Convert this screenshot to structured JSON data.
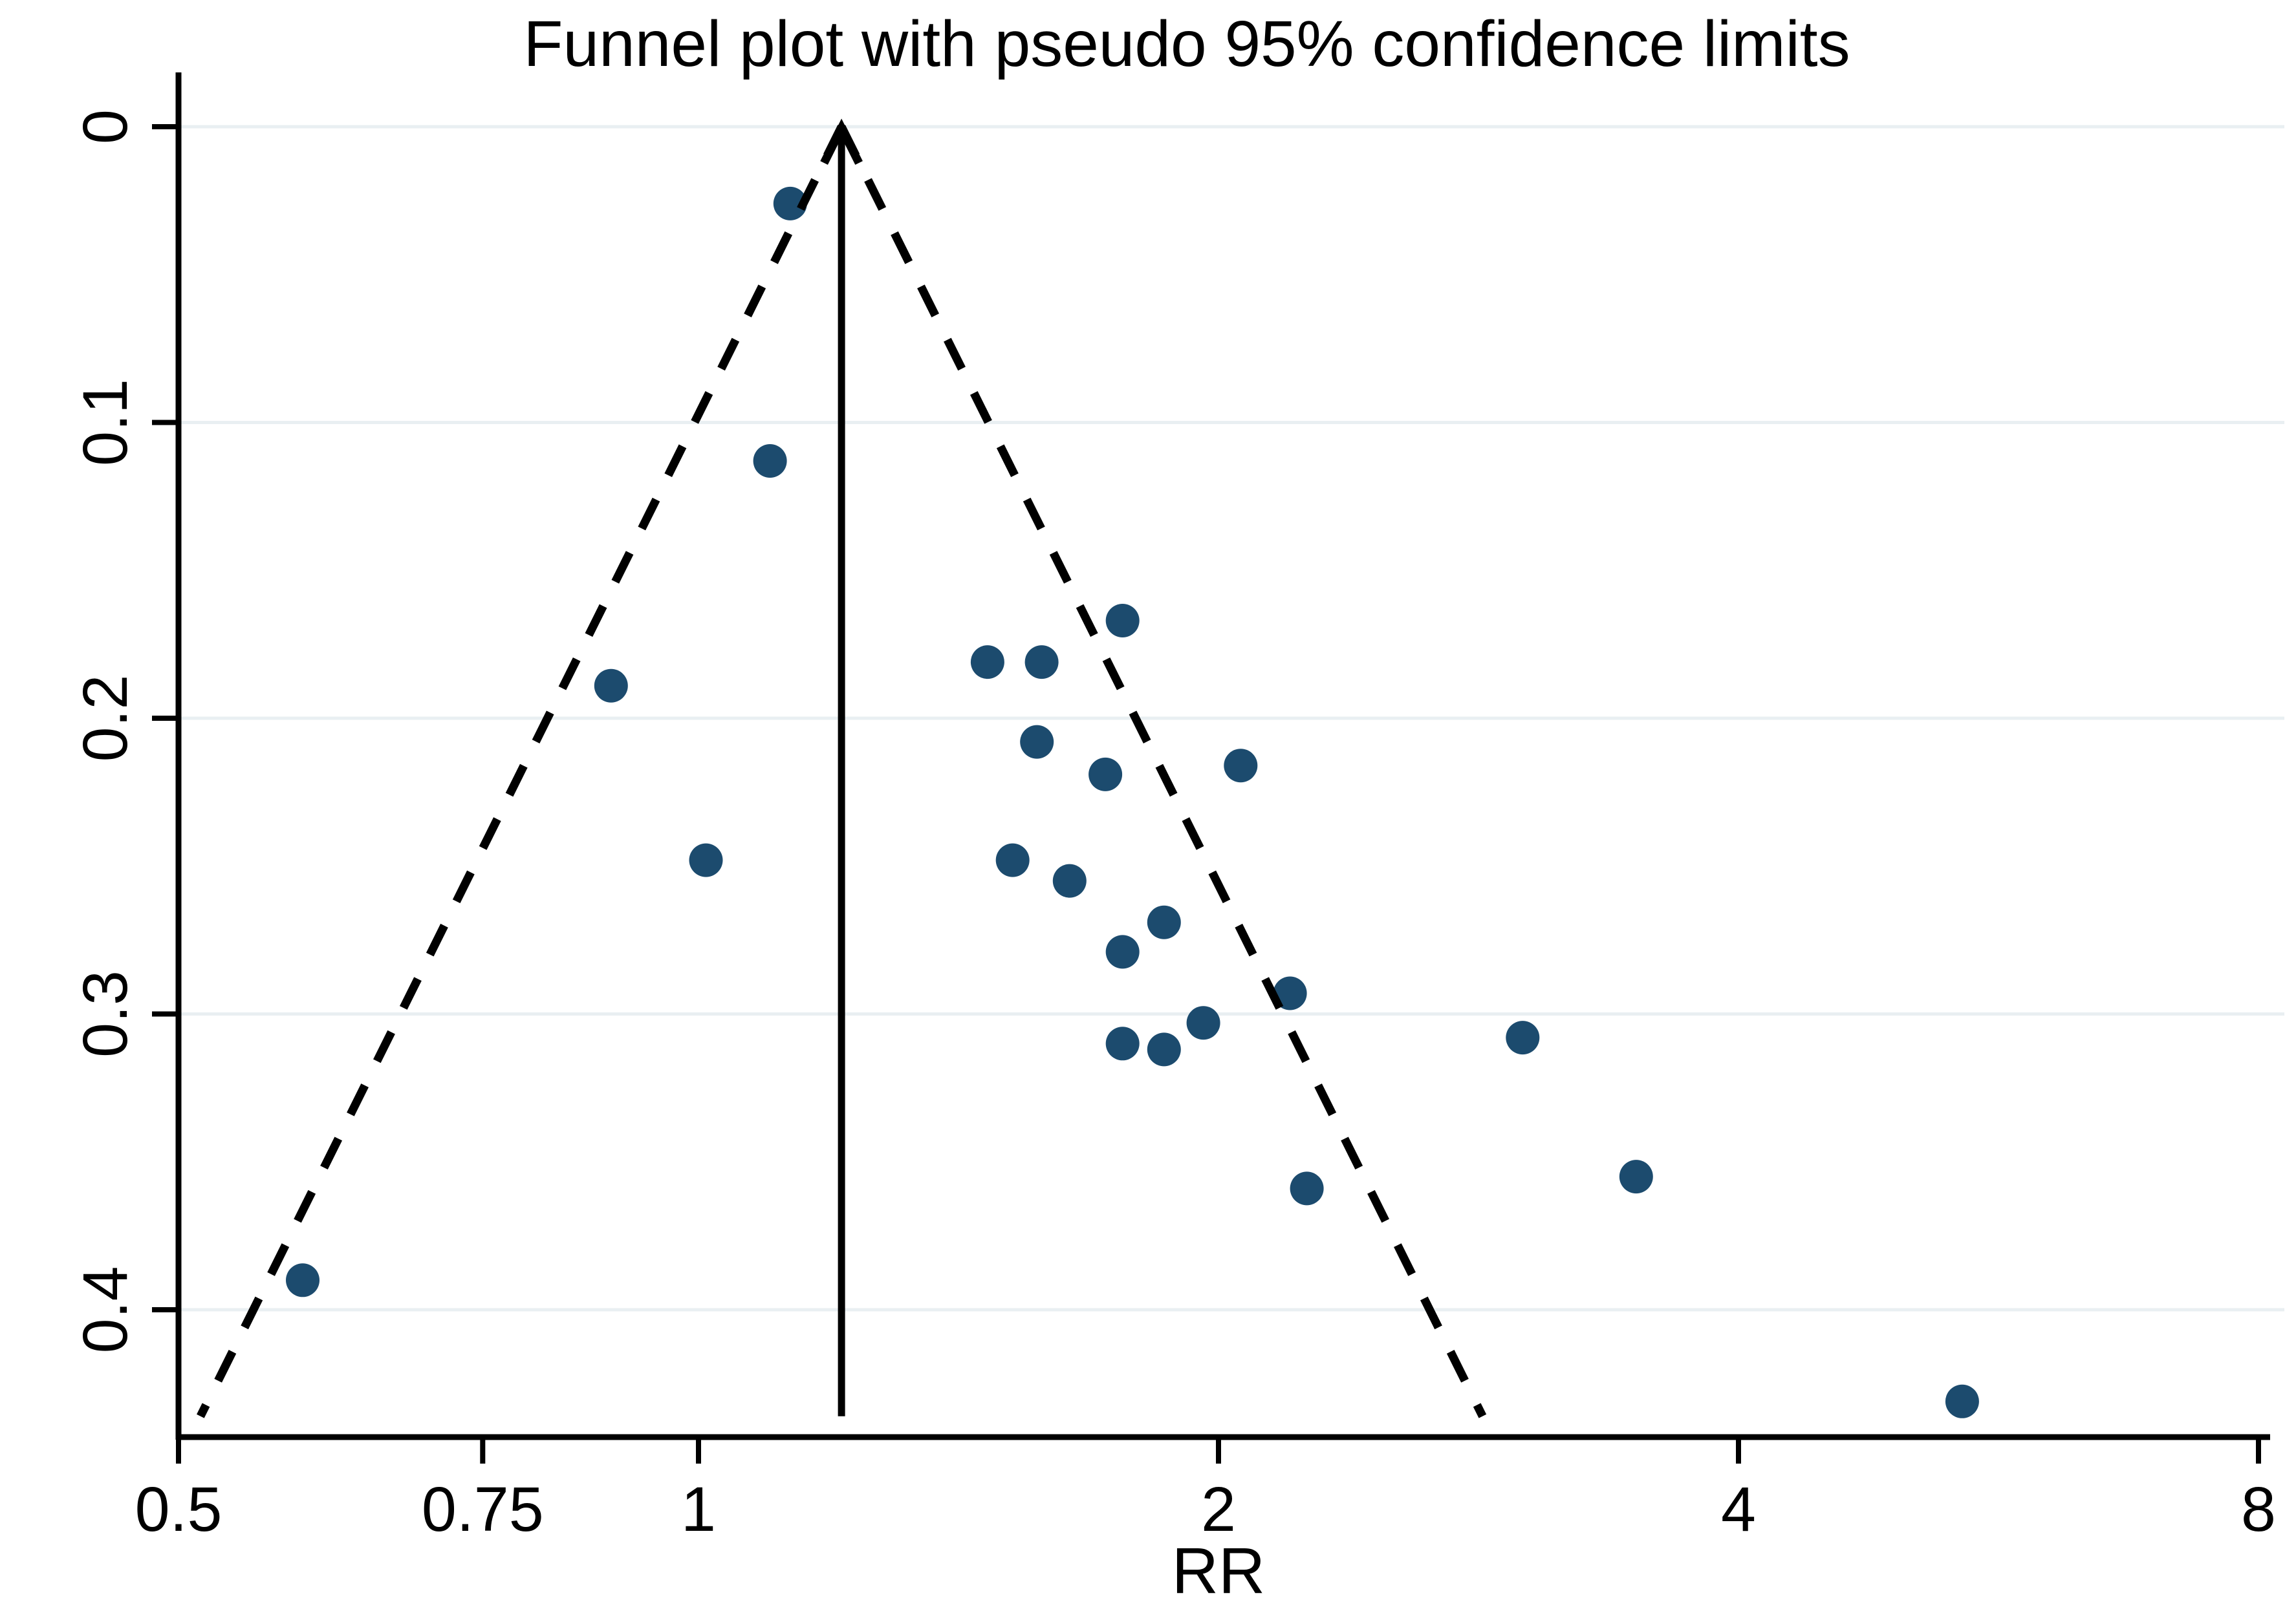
{
  "title": "Funnel plot with pseudo 95% confidence limits",
  "colors": {
    "point": "#1c4b6e",
    "grid": "#e9eff2",
    "axis": "#000000",
    "funnel_line": "#000000",
    "pooled_line": "#000000",
    "background": "#ffffff"
  },
  "chart_data": {
    "type": "scatter",
    "title": "Funnel plot with pseudo 95% confidence limits",
    "xlabel": "RR",
    "ylabel": "",
    "x_scale": "log",
    "xlim": [
      0.5,
      8
    ],
    "x_ticks": [
      0.5,
      0.75,
      1,
      2,
      4,
      8
    ],
    "x_tick_labels": [
      "0.5",
      "0.75",
      "1",
      "2",
      "4",
      "8"
    ],
    "y_axis_inverted": true,
    "ylim_se": [
      0,
      0.445
    ],
    "y_ticks": [
      0,
      0.1,
      0.2,
      0.3,
      0.4
    ],
    "y_tick_labels": [
      "0",
      "0.1",
      "0.2",
      "0.3",
      "0.4"
    ],
    "grid": "horizontal",
    "legend": "none",
    "pooled_rr": 1.21,
    "ci_z": 1.96,
    "funnel_se_max": 0.436,
    "points": [
      {
        "rr": 1.13,
        "se": 0.026
      },
      {
        "rr": 1.1,
        "se": 0.113
      },
      {
        "rr": 0.89,
        "se": 0.189
      },
      {
        "rr": 1.01,
        "se": 0.248
      },
      {
        "rr": 0.59,
        "se": 0.39
      },
      {
        "rr": 1.76,
        "se": 0.167
      },
      {
        "rr": 1.47,
        "se": 0.181
      },
      {
        "rr": 1.58,
        "se": 0.181
      },
      {
        "rr": 1.57,
        "se": 0.208
      },
      {
        "rr": 1.72,
        "se": 0.219
      },
      {
        "rr": 2.06,
        "se": 0.216
      },
      {
        "rr": 1.52,
        "se": 0.248
      },
      {
        "rr": 1.64,
        "se": 0.255
      },
      {
        "rr": 1.86,
        "se": 0.269
      },
      {
        "rr": 1.76,
        "se": 0.279
      },
      {
        "rr": 2.2,
        "se": 0.293
      },
      {
        "rr": 1.96,
        "se": 0.303
      },
      {
        "rr": 1.76,
        "se": 0.31
      },
      {
        "rr": 1.86,
        "se": 0.312
      },
      {
        "rr": 2.25,
        "se": 0.359
      },
      {
        "rr": 3.0,
        "se": 0.308
      },
      {
        "rr": 3.49,
        "se": 0.355
      },
      {
        "rr": 5.39,
        "se": 0.431
      }
    ]
  }
}
